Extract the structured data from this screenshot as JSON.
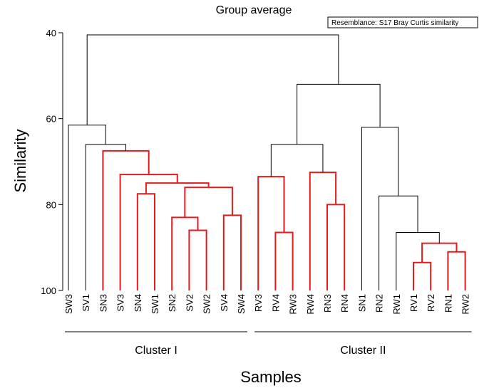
{
  "chart_data": {
    "type": "dendrogram",
    "title": "Group average",
    "annotation": "Resemblance: S17 Bray Curtis similarity",
    "ylabel": "Similarity",
    "xlabel": "Samples",
    "ylim": [
      40,
      100
    ],
    "yticks": [
      40,
      60,
      80,
      100
    ],
    "leaves": [
      "SW3",
      "SV1",
      "SN3",
      "SV3",
      "SN4",
      "SW1",
      "SN2",
      "SV2",
      "SW2",
      "SV4",
      "SW4",
      "RV3",
      "RV4",
      "RW3",
      "RW4",
      "RN3",
      "RN4",
      "SN1",
      "RN2",
      "RW1",
      "RV1",
      "RV2",
      "RN1",
      "RW2"
    ],
    "merges": [
      {
        "id": "m1",
        "left": "SV4",
        "right": "SW4",
        "similarity": 82.5,
        "color": "red"
      },
      {
        "id": "m2",
        "left": "SV2",
        "right": "SW2",
        "similarity": 86,
        "color": "red"
      },
      {
        "id": "m3",
        "left": "SN2",
        "right": "m2",
        "similarity": 83,
        "color": "red"
      },
      {
        "id": "m4",
        "left": "m3",
        "right": "m1",
        "similarity": 76,
        "color": "red"
      },
      {
        "id": "m5",
        "left": "SN4",
        "right": "SW1",
        "similarity": 77.5,
        "color": "red"
      },
      {
        "id": "m6",
        "left": "m5",
        "right": "m4",
        "similarity": 75,
        "color": "red"
      },
      {
        "id": "m7",
        "left": "SV3",
        "right": "m6",
        "similarity": 73,
        "color": "red"
      },
      {
        "id": "m8",
        "left": "SN3",
        "right": "m7",
        "similarity": 67.5,
        "color": "red"
      },
      {
        "id": "m9",
        "left": "SV1",
        "right": "m8",
        "similarity": 66,
        "color": "black"
      },
      {
        "id": "m10",
        "left": "SW3",
        "right": "m9",
        "similarity": 61.5,
        "color": "black"
      },
      {
        "id": "m11",
        "left": "RW3",
        "right": "RV4",
        "similarity": 86.5,
        "color": "red"
      },
      {
        "id": "m12",
        "left": "RV3",
        "right": "m11",
        "similarity": 73.5,
        "color": "red"
      },
      {
        "id": "m13",
        "left": "RN3",
        "right": "RN4",
        "similarity": 80,
        "color": "red"
      },
      {
        "id": "m14",
        "left": "RW4",
        "right": "m13",
        "similarity": 72.5,
        "color": "red"
      },
      {
        "id": "m15",
        "left": "m12",
        "right": "m14",
        "similarity": 66,
        "color": "black"
      },
      {
        "id": "m16",
        "left": "RV1",
        "right": "RV2",
        "similarity": 93.5,
        "color": "red"
      },
      {
        "id": "m17",
        "left": "RN1",
        "right": "RW2",
        "similarity": 91,
        "color": "red"
      },
      {
        "id": "m18",
        "left": "m16",
        "right": "m17",
        "similarity": 89,
        "color": "red"
      },
      {
        "id": "m19",
        "left": "RW1",
        "right": "m18",
        "similarity": 86.5,
        "color": "black"
      },
      {
        "id": "m20",
        "left": "RN2",
        "right": "m19",
        "similarity": 78,
        "color": "black"
      },
      {
        "id": "m21",
        "left": "SN1",
        "right": "m20",
        "similarity": 62,
        "color": "black"
      },
      {
        "id": "m22",
        "left": "m15",
        "right": "m21",
        "similarity": 52,
        "color": "black"
      },
      {
        "id": "m23",
        "left": "m10",
        "right": "m22",
        "similarity": 40.5,
        "color": "black"
      }
    ],
    "clusters": [
      {
        "label": "Cluster I",
        "first": "SW3",
        "last": "SW4"
      },
      {
        "label": "Cluster II",
        "first": "RV3",
        "last": "RW2"
      }
    ],
    "colors": {
      "red": "#e41a1c",
      "black": "#000000",
      "axis": "#000000"
    }
  }
}
